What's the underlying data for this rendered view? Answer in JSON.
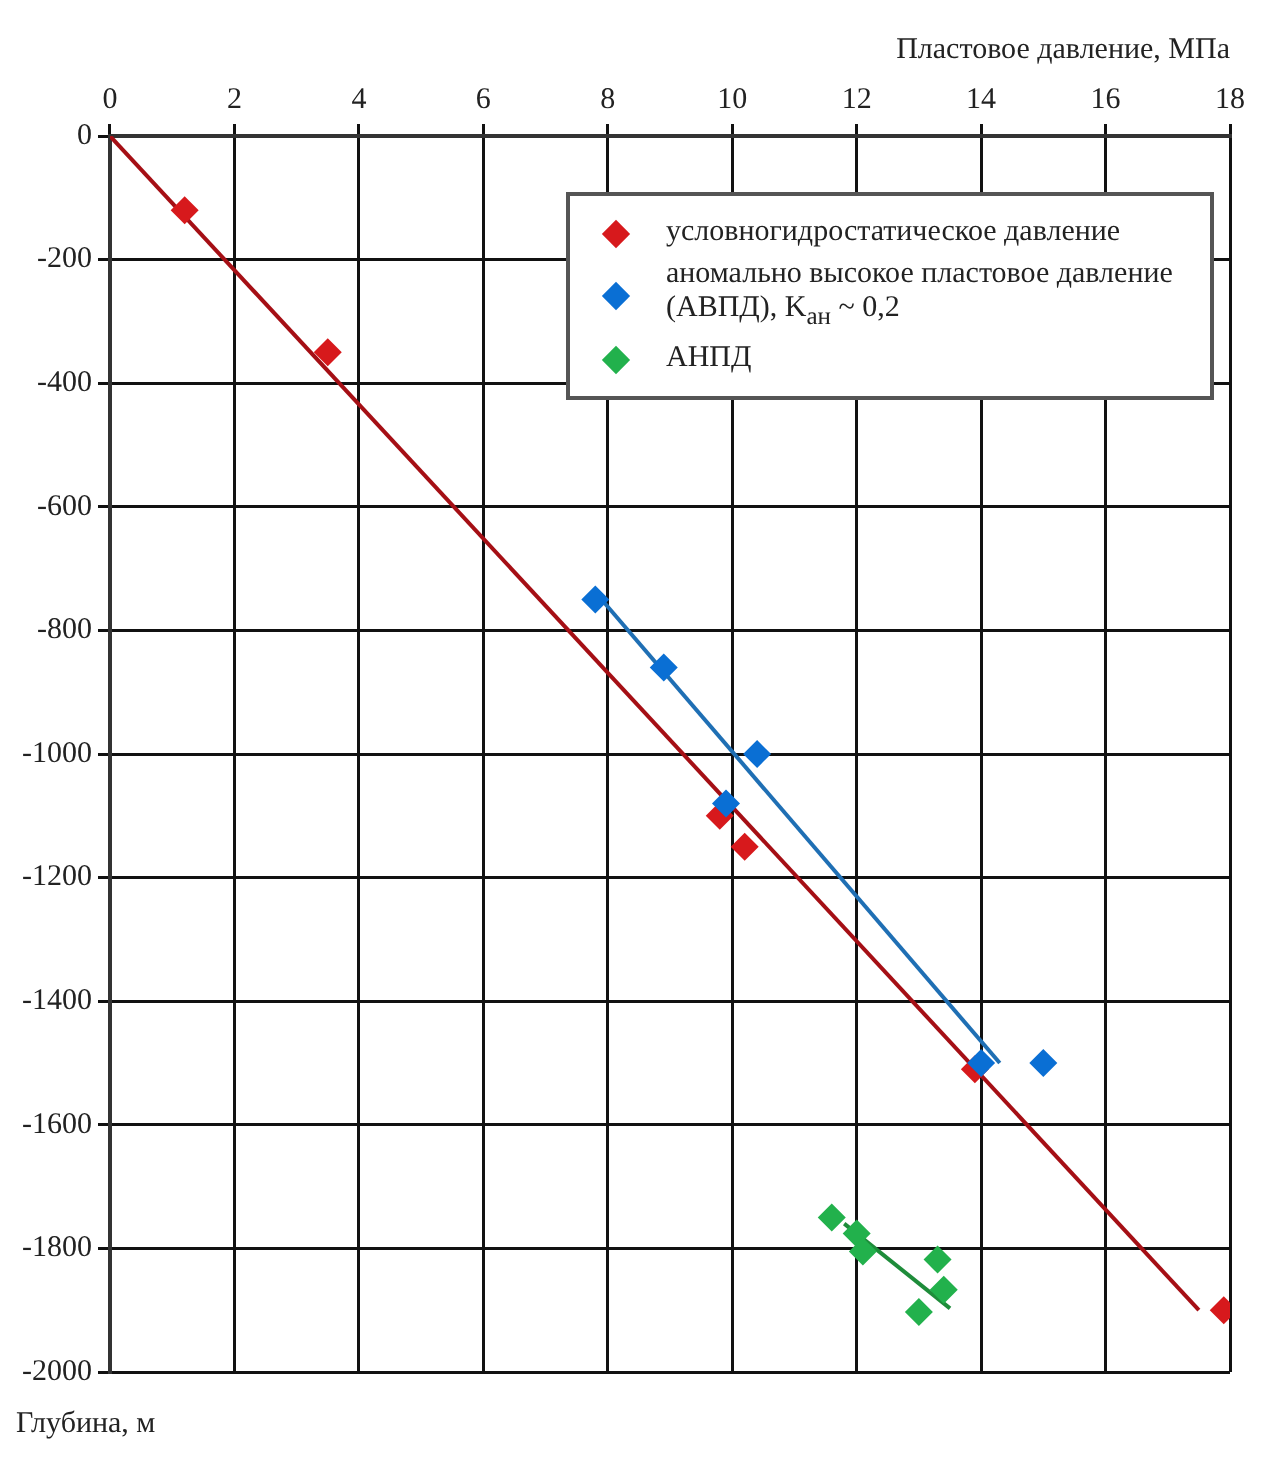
{
  "chart_data": {
    "type": "scatter",
    "xlabel": "Пластовое давление, МПа",
    "ylabel": "Глубина, м",
    "xlim": [
      0,
      18
    ],
    "xticks": [
      0,
      2,
      4,
      6,
      8,
      10,
      12,
      14,
      16,
      18
    ],
    "ylim": [
      -2000,
      0
    ],
    "yticks": [
      0,
      -200,
      -400,
      -600,
      -800,
      -1000,
      -1200,
      -1400,
      -1600,
      -1800,
      -2000
    ],
    "grid": true,
    "legend": "top right",
    "marker": "diamond",
    "series": [
      {
        "type": "line",
        "color": "#a50f15",
        "x": [
          0,
          17.5
        ],
        "values": [
          0,
          -1900
        ],
        "marker": "none"
      },
      {
        "type": "line",
        "color": "#1f6fb4",
        "x": [
          7.9,
          14.3
        ],
        "values": [
          -750,
          -1500
        ],
        "marker": "none"
      },
      {
        "type": "line",
        "color": "#1e8c3a",
        "x": [
          11.8,
          13.5
        ],
        "values": [
          -1760,
          -1897
        ],
        "marker": "none"
      },
      {
        "name": "условногидростатическое давление",
        "color": "#d7191c",
        "x": [
          1.2,
          3.5,
          9.8,
          10.2,
          13.9,
          17.9
        ],
        "values": [
          -120,
          -350,
          -1100,
          -1150,
          -1510,
          -1900
        ]
      },
      {
        "name": "аномально высокое пластовое давление (АВПД), K$_{ан}$ ~ 0,2",
        "color": "#0a6fd4",
        "x": [
          7.8,
          8.9,
          10.4,
          9.9,
          14,
          15
        ],
        "values": [
          -750,
          -860,
          -1000,
          -1080,
          -1500,
          -1500
        ]
      },
      {
        "name": "АНПД",
        "color": "#22b14c",
        "x": [
          11.6,
          12,
          12.1,
          13.3,
          13.4,
          13
        ],
        "values": [
          -1750,
          -1776,
          -1805,
          -1818,
          -1867,
          -1903
        ]
      }
    ]
  }
}
